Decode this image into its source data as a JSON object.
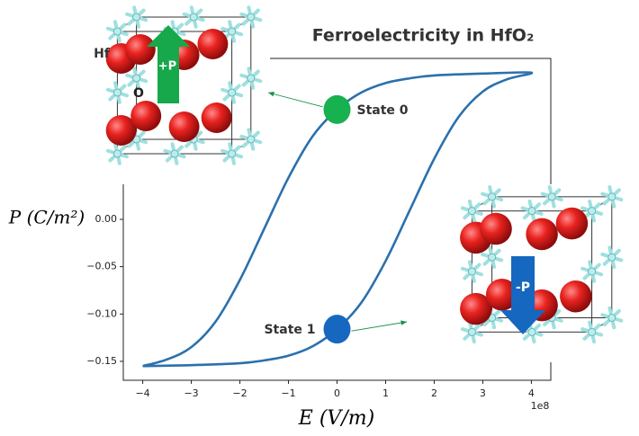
{
  "chart_data": {
    "type": "line",
    "title": "Ferroelectricity in HfO₂",
    "x_label": "E (V/m)",
    "y_label": "P (C/m²)",
    "x_offset_label": "1e8",
    "xlim": [
      -4.4,
      4.4
    ],
    "ylim": [
      -0.17,
      0.17
    ],
    "xticks": [
      {
        "value": -4,
        "label": "−4"
      },
      {
        "value": -3,
        "label": "−3"
      },
      {
        "value": -2,
        "label": "−2"
      },
      {
        "value": -1,
        "label": "−1"
      },
      0,
      1,
      2,
      3,
      4
    ],
    "yticks": [
      {
        "value": -0.15,
        "label": "−0.15"
      },
      {
        "value": -0.1,
        "label": "−0.10"
      },
      {
        "value": -0.05,
        "label": "−0.05"
      },
      {
        "value": 0,
        "label": "0.00"
      }
    ],
    "series": [
      {
        "color": "#2b70ad",
        "x": [
          -4,
          -3.5,
          -3,
          -2.5,
          -2,
          -1.5,
          -1,
          -0.5,
          0,
          0.5,
          1,
          1.5,
          2,
          3,
          4,
          3.5,
          3,
          2.5,
          2,
          1.5,
          1,
          0.5,
          0,
          -0.5,
          -1,
          -1.5,
          -2,
          -3,
          -4
        ],
        "values": [
          -0.155,
          -0.148,
          -0.135,
          -0.108,
          -0.064,
          -0.01,
          0.044,
          0.088,
          0.116,
          0.134,
          0.144,
          0.149,
          0.152,
          0.154,
          0.155,
          0.148,
          0.135,
          0.108,
          0.064,
          0.01,
          -0.044,
          -0.088,
          -0.116,
          -0.134,
          -0.144,
          -0.149,
          -0.152,
          -0.154,
          -0.155
        ]
      }
    ],
    "annotations": [
      {
        "text": "State 0",
        "x": 0,
        "y": 0.116,
        "color": "#17b14f"
      },
      {
        "text": "State 1",
        "x": 0,
        "y": -0.116,
        "color": "#1667bf"
      }
    ],
    "inset_labels": [
      "Hf",
      "O",
      "+P",
      "-P"
    ]
  }
}
